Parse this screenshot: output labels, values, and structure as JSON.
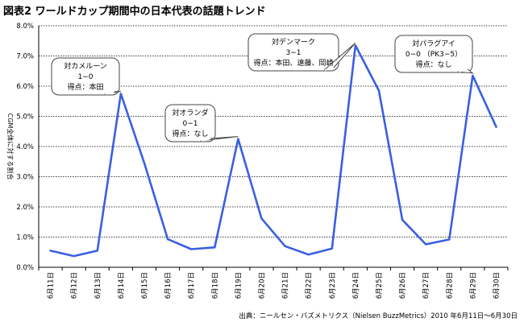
{
  "chart_data": {
    "type": "line",
    "title": "図表2 ワールドカップ期間中の日本代表の話題トレンド",
    "ylabel": "CGM全体に対する割合",
    "ylim": [
      0,
      8
    ],
    "yticks": [
      "0.0%",
      "1.0%",
      "2.0%",
      "3.0%",
      "4.0%",
      "5.0%",
      "6.0%",
      "7.0%",
      "8.0%"
    ],
    "grid": "horizontal-dotted",
    "categories": [
      "6月11日",
      "6月12日",
      "6月13日",
      "6月14日",
      "6月15日",
      "6月16日",
      "6月17日",
      "6月18日",
      "6月19日",
      "6月20日",
      "6月21日",
      "6月22日",
      "6月23日",
      "6月24日",
      "6月25日",
      "6月26日",
      "6月27日",
      "6月28日",
      "6月29日",
      "6月30日"
    ],
    "series": [
      {
        "values": [
          0.55,
          0.37,
          0.55,
          5.75,
          3.45,
          0.93,
          0.6,
          0.66,
          4.25,
          1.62,
          0.7,
          0.42,
          0.62,
          7.35,
          5.85,
          1.57,
          0.76,
          0.92,
          6.35,
          4.65
        ]
      }
    ],
    "series_color": "#3a5fe0",
    "annotations": [
      {
        "lines": [
          "対カメルーン",
          "1−0",
          "得点：本田"
        ],
        "index": 3
      },
      {
        "lines": [
          "対オランダ",
          "0−1",
          "得点：なし"
        ],
        "index": 8
      },
      {
        "lines": [
          "対デンマーク",
          "3−1",
          "得点：本田、遠藤、岡崎"
        ],
        "index": 13
      },
      {
        "lines": [
          "対パラグアイ",
          "0−0 （PK3−5）",
          "得点：なし"
        ],
        "index": 18
      }
    ]
  },
  "source": "出典：ニールセン・バズメトリクス（Nielsen BuzzMetrics）2010 年6月11日〜6月30日"
}
